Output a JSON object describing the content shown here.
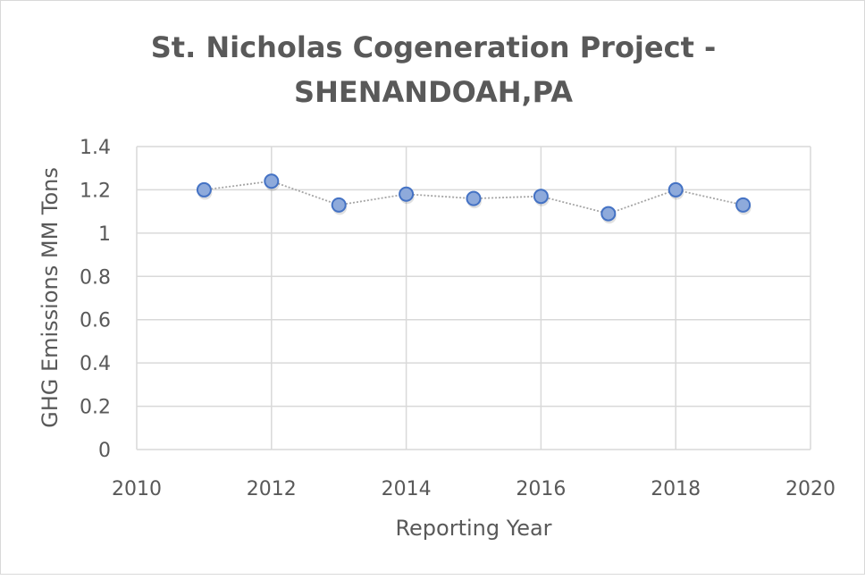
{
  "chart_data": {
    "type": "line",
    "title": "St. Nicholas Cogeneration Project -",
    "title_line2": "SHENANDOAH,PA",
    "xlabel": "Reporting Year",
    "ylabel": "GHG Emissions MM Tons",
    "xlim": [
      2010,
      2020
    ],
    "ylim": [
      0,
      1.4
    ],
    "xticks": [
      "2010",
      "2012",
      "2014",
      "2016",
      "2018",
      "2020"
    ],
    "yticks": [
      "0",
      "0.2",
      "0.4",
      "0.6",
      "0.8",
      "1",
      "1.2",
      "1.4"
    ],
    "grid": true,
    "legend": "none",
    "series": [
      {
        "name": "GHG Emissions",
        "x": [
          2011,
          2012,
          2013,
          2014,
          2015,
          2016,
          2017,
          2018,
          2019
        ],
        "values": [
          1.2,
          1.24,
          1.13,
          1.18,
          1.16,
          1.17,
          1.09,
          1.2,
          1.13
        ],
        "marker_color": "#8eaadb",
        "marker_edge": "#4472c4",
        "line_color": "#a6a6a6"
      }
    ]
  }
}
